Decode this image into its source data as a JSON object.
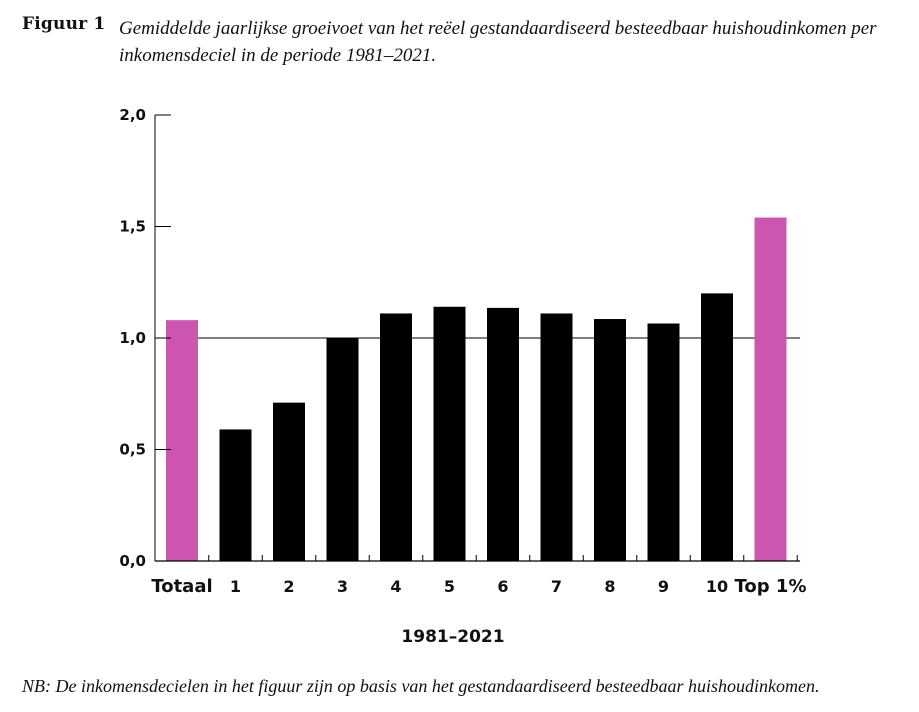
{
  "header": {
    "figure_label": "Figuur 1",
    "caption": "Gemiddelde jaarlijkse groeivoet van het reëel gestandaardiseerd besteedbaar huishoudinkomen per inkomensdeciel in de periode 1981–2021."
  },
  "footer": {
    "note": "NB: De inkomensdecielen in het figuur zijn op basis van het gestandaardiseerd besteedbaar huishoudinkomen."
  },
  "chart_data": {
    "type": "bar",
    "title": "",
    "xlabel": "1981–2021",
    "ylabel": "",
    "categories": [
      "Totaal",
      "1",
      "2",
      "3",
      "4",
      "5",
      "6",
      "7",
      "8",
      "9",
      "10",
      "Top 1%"
    ],
    "values": [
      1.08,
      0.59,
      0.71,
      1.0,
      1.11,
      1.14,
      1.135,
      1.11,
      1.085,
      1.065,
      1.2,
      1.54
    ],
    "bar_colors": [
      "#cc55b0",
      "#000000",
      "#000000",
      "#000000",
      "#000000",
      "#000000",
      "#000000",
      "#000000",
      "#000000",
      "#000000",
      "#000000",
      "#cc55b0"
    ],
    "ylim": [
      0,
      2.0
    ],
    "yticks": [
      0.0,
      0.5,
      1.0,
      1.5,
      2.0
    ],
    "ytick_labels": [
      "0,0",
      "0,5",
      "1,0",
      "1,5",
      "2,0"
    ],
    "reference_line": 1.0,
    "grid": false,
    "legend": "none"
  }
}
